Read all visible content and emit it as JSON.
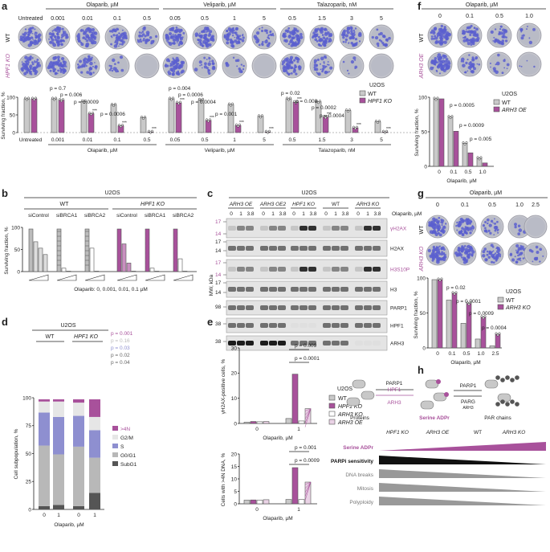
{
  "panels": {
    "a": {
      "letter": "a",
      "row_labels": [
        "WT",
        "HPF1 KO"
      ],
      "drug_groups": [
        {
          "name": "Olaparib, µM",
          "doses": [
            "0.001",
            "0.01",
            "0.1",
            "0.5"
          ]
        },
        {
          "name": "Veliparib, µM",
          "doses": [
            "0.05",
            "0.5",
            "1",
            "5"
          ]
        },
        {
          "name": "Talazoparib, nM",
          "doses": [
            "0.5",
            "1.5",
            "3",
            "5"
          ]
        }
      ],
      "untreated": "Untreated",
      "legend_title": "U2OS",
      "legend": [
        "WT",
        "HPF1 KO"
      ],
      "ylabel": "Surviving fraction, %",
      "pvalues": {
        "olaparib": [
          "p = 0.7",
          "p = 0.006",
          "p = 0.0009",
          "p = 0.0006"
        ],
        "veliparib": [
          "p = 0.004",
          "p = 0.0006",
          "p = 0.0004",
          "p = 0.001"
        ],
        "talazoparib": [
          "p = 0.02",
          "p = 0.008",
          "p = 0.0002",
          "p = 0.0004"
        ]
      }
    },
    "b": {
      "letter": "b",
      "title": "U2OS",
      "groups": [
        "WT",
        "HPF1 KO"
      ],
      "conditions": [
        "siControl",
        "siBRCA1",
        "siBRCA2",
        "siControl",
        "siBRCA1",
        "siBRCA2"
      ],
      "ylabel": "Surviving fraction, %",
      "xlabel": "Olaparib: 0, 0.001, 0.01, 0.1 µM"
    },
    "c": {
      "letter": "c",
      "title": "U2OS",
      "lanes": [
        "ARH3 OE",
        "ARH3 OE2",
        "HPF1 KO",
        "WT",
        "ARH3 KO"
      ],
      "dose_label": "Olaparib, µM",
      "doses": [
        "0",
        "1",
        "3.8"
      ],
      "blots": [
        "γH2AX",
        "H2AX",
        "H3S10P",
        "H3",
        "PARP1",
        "HPF1",
        "ARH3"
      ],
      "mw_axis": "MW, kDa",
      "mw": [
        "17",
        "14",
        "17",
        "14",
        "17",
        "14",
        "17",
        "14",
        "98",
        "38",
        "38"
      ]
    },
    "d": {
      "letter": "d",
      "title": "U2OS",
      "groups": [
        "WT",
        "HPF1 KO"
      ],
      "xlabel": "Olaparib, µM",
      "ylabel": "Cell subpopulation, %",
      "pvalues": [
        "p = 0.001",
        "p = 0.16",
        "p = 0.03",
        "p = 0.02",
        "p = 0.04"
      ],
      "legend": [
        ">4N",
        "G2/M",
        "S",
        "G0/G1",
        "SubG1"
      ]
    },
    "e": {
      "letter": "e",
      "ylabel_top": "γH2AX-positive cells, %",
      "ylabel_bottom": "Cells with >4N DNA, %",
      "xlabel": "Olaparib, µM",
      "legend_title": "U2OS",
      "legend": [
        "WT",
        "HPF1 KO",
        "ARH3 KO",
        "ARH3 OE"
      ],
      "pvalues_top": [
        "p = 0.009",
        "p = 0.0001"
      ],
      "pvalues_bottom": [
        "p = 0.001",
        "p = 0.0009"
      ]
    },
    "f": {
      "letter": "f",
      "drug": "Olaparib, µM",
      "doses": [
        "0",
        "0.1",
        "0.5",
        "1.0"
      ],
      "row_labels": [
        "WT",
        "ARH3 OE"
      ],
      "legend_title": "U2OS",
      "legend": [
        "WT",
        "ARH3 OE"
      ],
      "ylabel": "Surviving fraction, %",
      "pvalues": [
        "p = 0.0005",
        "p = 0.0009",
        "p = 0.005"
      ]
    },
    "g": {
      "letter": "g",
      "drug": "Olaparib, µM",
      "doses": [
        "0",
        "0.1",
        "0.5",
        "1.0",
        "2.5"
      ],
      "row_labels": [
        "WT",
        "ARH3 KO"
      ],
      "legend_title": "U2OS",
      "legend": [
        "WT",
        "ARH3 KO"
      ],
      "ylabel": "Surviving fraction, %",
      "pvalues": [
        "p = 0.02",
        "p = 0.0001",
        "p = 0.0009",
        "p = 0.0004"
      ]
    },
    "h": {
      "letter": "h",
      "enzymes": [
        "PARP1",
        "HPF1",
        "ARH3",
        "PARP1",
        "PARG",
        "ARH3"
      ],
      "states": [
        "Proteins",
        "Serine ADPr",
        "PAR chains"
      ],
      "columns": [
        "HPF1 KO",
        "ARH3 OE",
        "WT",
        "ARH3 KO"
      ],
      "rows": [
        "Serine ADPr",
        "PARPi sensitivity",
        "DNA breaks",
        "Mitosis",
        "Polyploidy"
      ]
    }
  },
  "chart_data": [
    {
      "type": "bar",
      "title": "",
      "categories": [
        "Untreated",
        "Olaparib 0.001",
        "Olaparib 0.01",
        "Olaparib 0.1",
        "Olaparib 0.5",
        "Veliparib 0.05",
        "Veliparib 0.5",
        "Veliparib 1",
        "Veliparib 5",
        "Talazoparib 0.5",
        "Talazoparib 1.5",
        "Talazoparib 3",
        "Talazoparib 5"
      ],
      "series": [
        {
          "name": "WT",
          "values": [
            100,
            100,
            92,
            82,
            44,
            100,
            97,
            83,
            48,
            100,
            91,
            65,
            32
          ]
        },
        {
          "name": "HPF1 KO",
          "values": [
            100,
            96,
            56,
            20,
            2,
            88,
            36,
            21,
            2,
            90,
            46,
            14,
            2
          ]
        }
      ],
      "ylabel": "Surviving fraction, %",
      "ylim": [
        0,
        100
      ]
    },
    {
      "type": "bar",
      "title": "",
      "categories": [
        "0",
        "0.1",
        "0.5",
        "1.0"
      ],
      "series": [
        {
          "name": "WT",
          "values": [
            100,
            73,
            34,
            12
          ]
        },
        {
          "name": "ARH3 OE",
          "values": [
            100,
            52,
            20,
            5
          ]
        }
      ],
      "ylabel": "Surviving fraction, %",
      "ylim": [
        0,
        100
      ]
    },
    {
      "type": "bar",
      "title": "",
      "categories": [
        "0",
        "0.1",
        "0.5",
        "1.0",
        "2.5"
      ],
      "series": [
        {
          "name": "WT",
          "values": [
            100,
            70,
            36,
            13,
            3
          ]
        },
        {
          "name": "ARH3 KO",
          "values": [
            100,
            80,
            65,
            45,
            20
          ]
        }
      ],
      "ylabel": "Surviving fraction, %",
      "ylim": [
        0,
        100
      ]
    },
    {
      "type": "bar",
      "title": "",
      "categories": [
        "WT 0",
        "WT 1",
        "HPF1 KO 0",
        "HPF1 KO 1"
      ],
      "series": [
        {
          "name": ">4N",
          "values": [
            2,
            2,
            3,
            16
          ]
        },
        {
          "name": "G2/M",
          "values": [
            10,
            14,
            12,
            12
          ]
        },
        {
          "name": "S",
          "values": [
            30,
            34,
            28,
            25
          ]
        },
        {
          "name": "G0/G1",
          "values": [
            55,
            46,
            54,
            32
          ]
        },
        {
          "name": "SubG1",
          "values": [
            3,
            4,
            3,
            15
          ]
        }
      ],
      "ylabel": "Cell subpopulation, %",
      "ylim": [
        0,
        100
      ]
    },
    {
      "type": "bar",
      "title": "",
      "categories": [
        "0",
        "1"
      ],
      "series": [
        {
          "name": "WT",
          "values": [
            0.5,
            2
          ]
        },
        {
          "name": "HPF1 KO",
          "values": [
            0.8,
            20
          ]
        },
        {
          "name": "ARH3 KO",
          "values": [
            0.7,
            1
          ]
        },
        {
          "name": "ARH3 OE",
          "values": [
            0.8,
            6
          ]
        }
      ],
      "ylabel": "γH2AX-positive cells, %",
      "ylim": [
        0,
        30
      ]
    },
    {
      "type": "bar",
      "title": "",
      "categories": [
        "0",
        "1"
      ],
      "series": [
        {
          "name": "WT",
          "values": [
            1.5,
            1.8
          ]
        },
        {
          "name": "HPF1 KO",
          "values": [
            1.6,
            15
          ]
        },
        {
          "name": "ARH3 KO",
          "values": [
            1.5,
            1.8
          ]
        },
        {
          "name": "ARH3 OE",
          "values": [
            1.7,
            9
          ]
        }
      ],
      "ylabel": "Cells with >4N DNA, %",
      "ylim": [
        0,
        20
      ]
    }
  ],
  "colors": {
    "wt": "#c9c9c9",
    "ko": "#a8519b",
    "s_phase": "#8e8fd0",
    "g2m": "#e6e6e6",
    "g1": "#b8b8b8",
    "sub": "#555555",
    "colony": "#5a5fcf"
  }
}
